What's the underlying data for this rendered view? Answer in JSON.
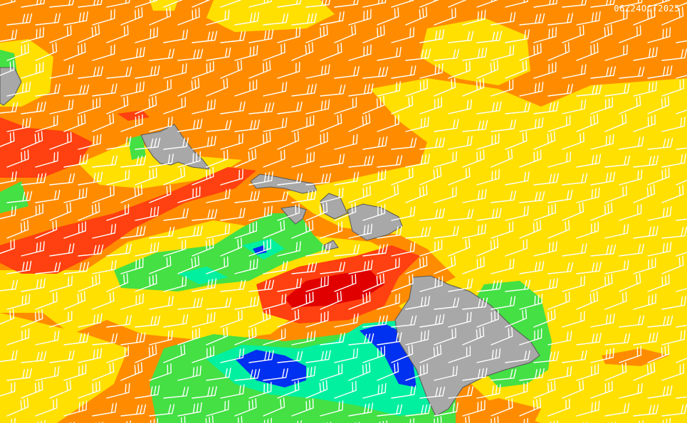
{
  "timestamp": "06Z24OCT2025"
}
